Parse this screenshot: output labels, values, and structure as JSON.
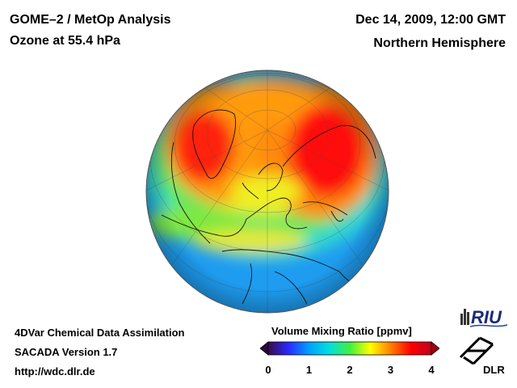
{
  "header": {
    "title_line1": "GOME–2 / MetOp Analysis",
    "title_line2": "Ozone at 55.4 hPa",
    "date": "Dec 14, 2009, 12:00 GMT",
    "region": "Northern Hemisphere"
  },
  "footer": {
    "line1": "4DVar Chemical Data Assimilation",
    "line2": "SACADA Version 1.7",
    "line3": "http://wdc.dlr.de"
  },
  "colorbar": {
    "title": "Volume Mixing Ratio [ppmv]",
    "ticks": [
      "0",
      "1",
      "2",
      "3",
      "4"
    ],
    "min": 0,
    "max": 4,
    "colors": [
      "#3a0a4a",
      "#2a2aff",
      "#00a0ff",
      "#00e0e0",
      "#40f040",
      "#ffff00",
      "#ff8000",
      "#ff0000",
      "#c00020"
    ]
  },
  "logos": {
    "riu": "RIU",
    "dlr": "DLR"
  }
}
